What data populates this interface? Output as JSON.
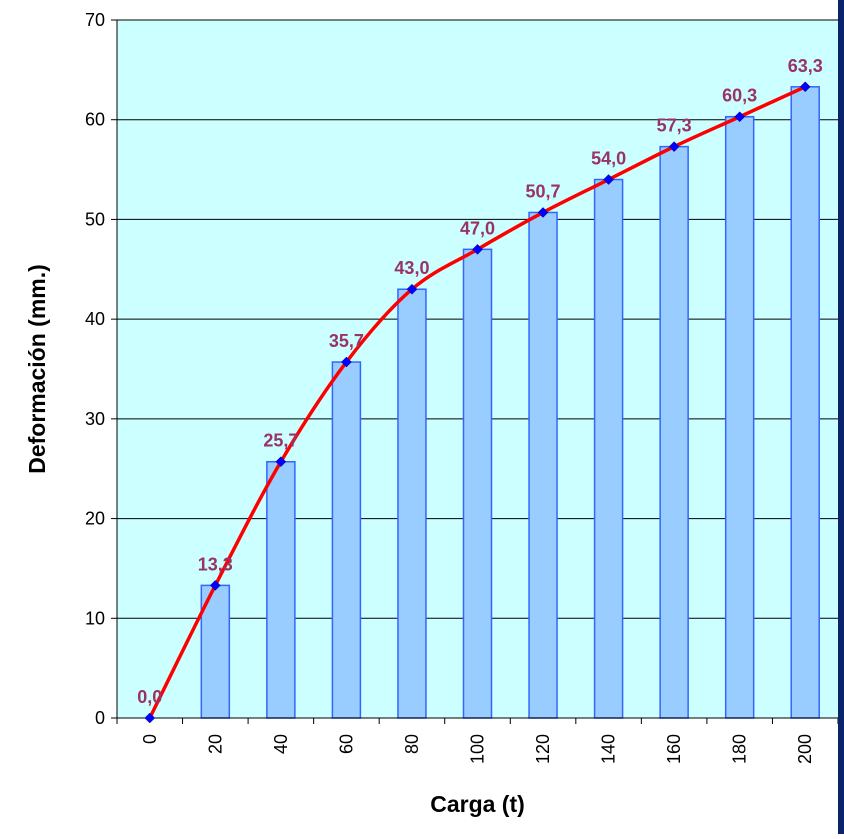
{
  "colors": {
    "plot_background": "#ccffff",
    "bar_fill": "#99ccff",
    "bar_stroke": "#3366ff",
    "line": "#ff0000",
    "marker": "#0000ff",
    "label": "#993366",
    "right_edge": "#0a246a"
  },
  "chart_data": {
    "type": "bar",
    "title": "",
    "xlabel": "Carga (t)",
    "ylabel": "Deformación (mm.)",
    "categories": [
      "0",
      "20",
      "40",
      "60",
      "80",
      "100",
      "120",
      "140",
      "160",
      "180",
      "200"
    ],
    "ylim": [
      0,
      70
    ],
    "yticks": [
      "0",
      "10",
      "20",
      "30",
      "40",
      "50",
      "60",
      "70"
    ],
    "grid": true,
    "legend": "none",
    "series": [
      {
        "type": "bar",
        "values": [
          0,
          13.3,
          25.7,
          35.7,
          43.0,
          47.0,
          50.7,
          54.0,
          57.3,
          60.3,
          63.3
        ]
      },
      {
        "type": "line",
        "smooth": true,
        "values": [
          0,
          13.3,
          25.7,
          35.7,
          43.0,
          47.0,
          50.7,
          54.0,
          57.3,
          60.3,
          63.3
        ]
      }
    ],
    "data_labels": [
      "0,0",
      "13,3",
      "25,7",
      "35,7",
      "43,0",
      "47,0",
      "50,7",
      "54,0",
      "57,3",
      "60,3",
      "63,3"
    ]
  }
}
